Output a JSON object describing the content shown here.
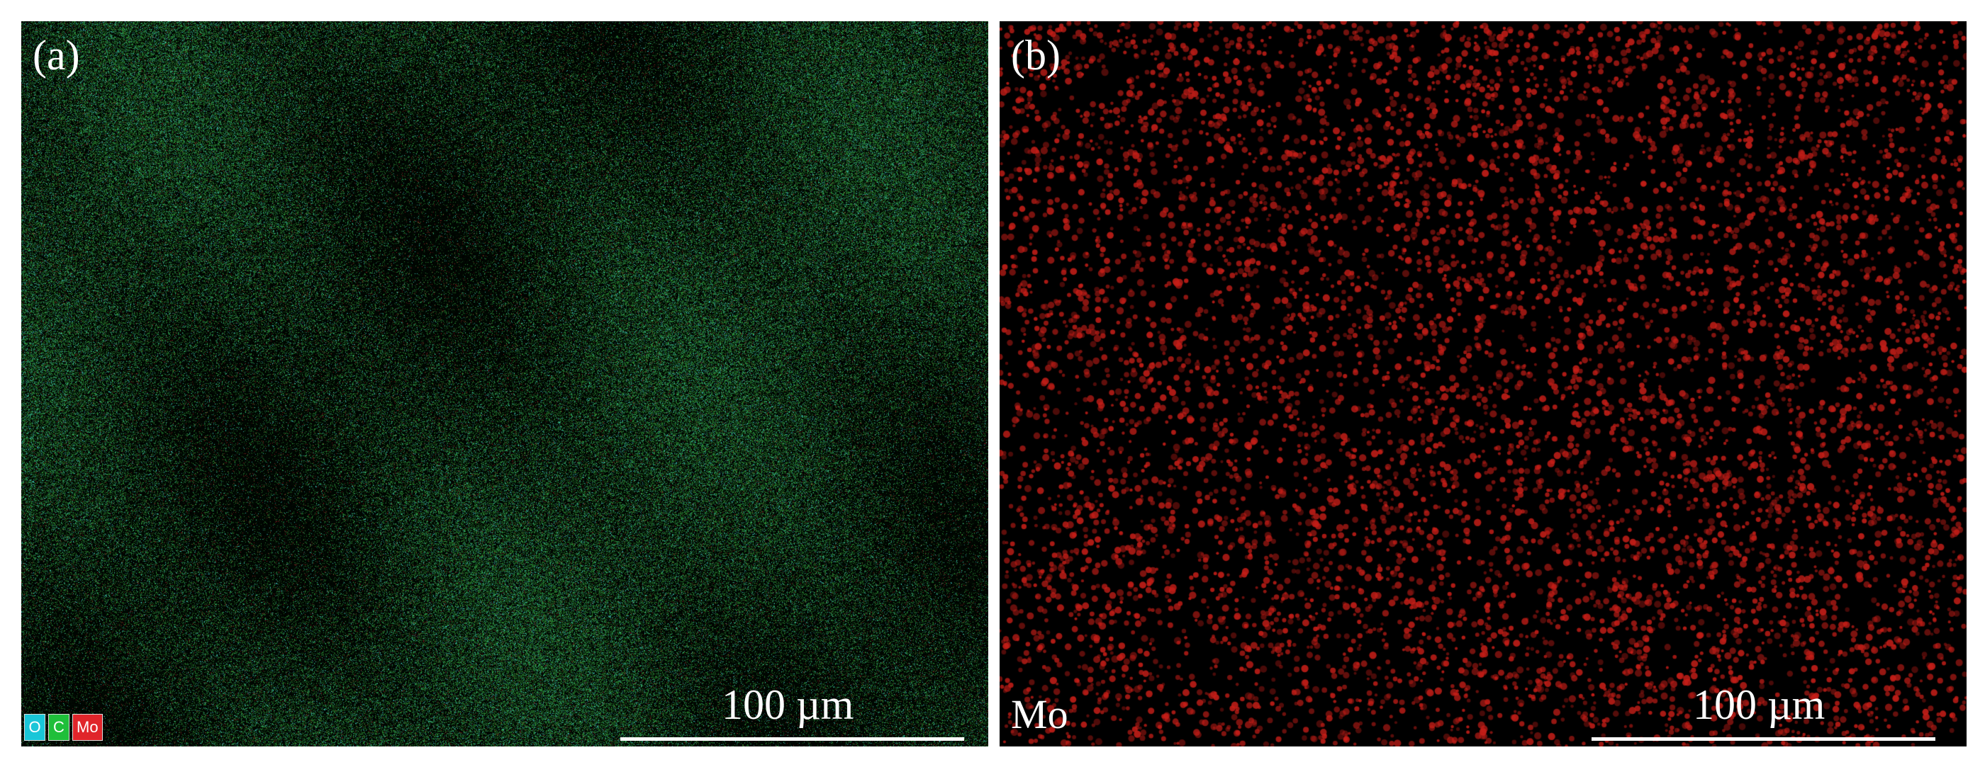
{
  "panel_a": {
    "label": "(a)",
    "scale_bar": "100 µm",
    "legend": [
      {
        "text": "O",
        "color": "#19c6d8"
      },
      {
        "text": "C",
        "color": "#1fbf3a"
      },
      {
        "text": "Mo",
        "color": "#e0252a"
      }
    ],
    "map_colors": {
      "base": "#0a2a10",
      "C": "#2f9a3a",
      "O": "#3fc7c0",
      "Mo": "#b4282a"
    }
  },
  "panel_b": {
    "label": "(b)",
    "element": "Mo",
    "scale_bar": "100 µm",
    "map_colors": {
      "base": "#000000",
      "Mo": "#c41e18"
    }
  }
}
